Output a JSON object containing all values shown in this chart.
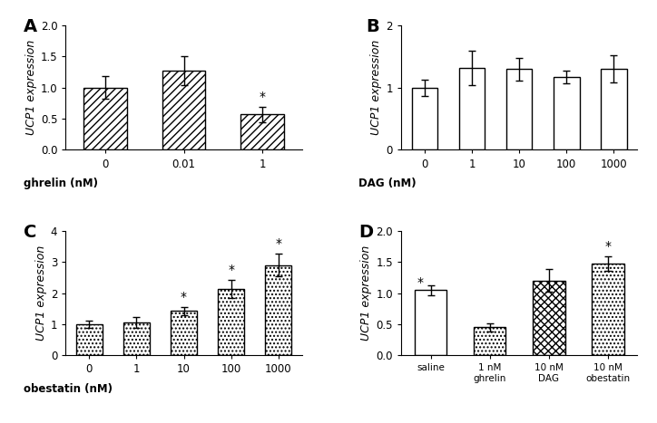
{
  "A": {
    "categories": [
      "0",
      "0.01",
      "1"
    ],
    "values": [
      1.0,
      1.27,
      0.57
    ],
    "errors": [
      0.18,
      0.23,
      0.12
    ],
    "ylabel": "UCP1 expression",
    "xlabel_prefix": "ghrelin (nM)",
    "ylim": [
      0,
      2.0
    ],
    "yticks": [
      0.0,
      0.5,
      1.0,
      1.5,
      2.0
    ],
    "ytick_labels": [
      "0.0",
      "0.5",
      "1.0",
      "1.5",
      "2.0"
    ],
    "sig": [
      false,
      false,
      true
    ],
    "panel": "A",
    "hatch": "////"
  },
  "B": {
    "categories": [
      "0",
      "1",
      "10",
      "100",
      "1000"
    ],
    "values": [
      1.0,
      1.32,
      1.3,
      1.17,
      1.3
    ],
    "errors": [
      0.13,
      0.28,
      0.18,
      0.1,
      0.22
    ],
    "ylabel": "UCP1 expression",
    "xlabel_prefix": "DAG (nM)",
    "ylim": [
      0,
      2
    ],
    "yticks": [
      0,
      1,
      2
    ],
    "ytick_labels": [
      "0",
      "1",
      "2"
    ],
    "sig": [
      false,
      false,
      false,
      false,
      false
    ],
    "panel": "B",
    "hatch": "www"
  },
  "C": {
    "categories": [
      "0",
      "1",
      "10",
      "100",
      "1000"
    ],
    "values": [
      1.0,
      1.05,
      1.42,
      2.13,
      2.9
    ],
    "errors": [
      0.12,
      0.18,
      0.13,
      0.3,
      0.37
    ],
    "ylabel": "UCP1 expression",
    "xlabel_prefix": "obestatin (nM)",
    "ylim": [
      0,
      4
    ],
    "yticks": [
      0,
      1,
      2,
      3,
      4
    ],
    "ytick_labels": [
      "0",
      "1",
      "2",
      "3",
      "4"
    ],
    "sig": [
      false,
      false,
      true,
      true,
      true
    ],
    "panel": "C",
    "hatch": "...."
  },
  "D": {
    "categories": [
      "saline",
      "1 nM\nghrelin",
      "10 nM\nDAG",
      "10 nM\nobestatin"
    ],
    "values": [
      1.05,
      0.45,
      1.2,
      1.47
    ],
    "errors": [
      0.08,
      0.07,
      0.18,
      0.12
    ],
    "ylabel": "UCP1 expression",
    "xlabel_prefix": "",
    "ylim": [
      0,
      2.0
    ],
    "yticks": [
      0.0,
      0.5,
      1.0,
      1.5,
      2.0
    ],
    "ytick_labels": [
      "0.0",
      "0.5",
      "1.0",
      "1.5",
      "2.0"
    ],
    "sig": [
      false,
      true,
      false,
      true
    ],
    "panel": "D",
    "hatch": [
      "",
      "....",
      "xxxx",
      "...."
    ]
  }
}
